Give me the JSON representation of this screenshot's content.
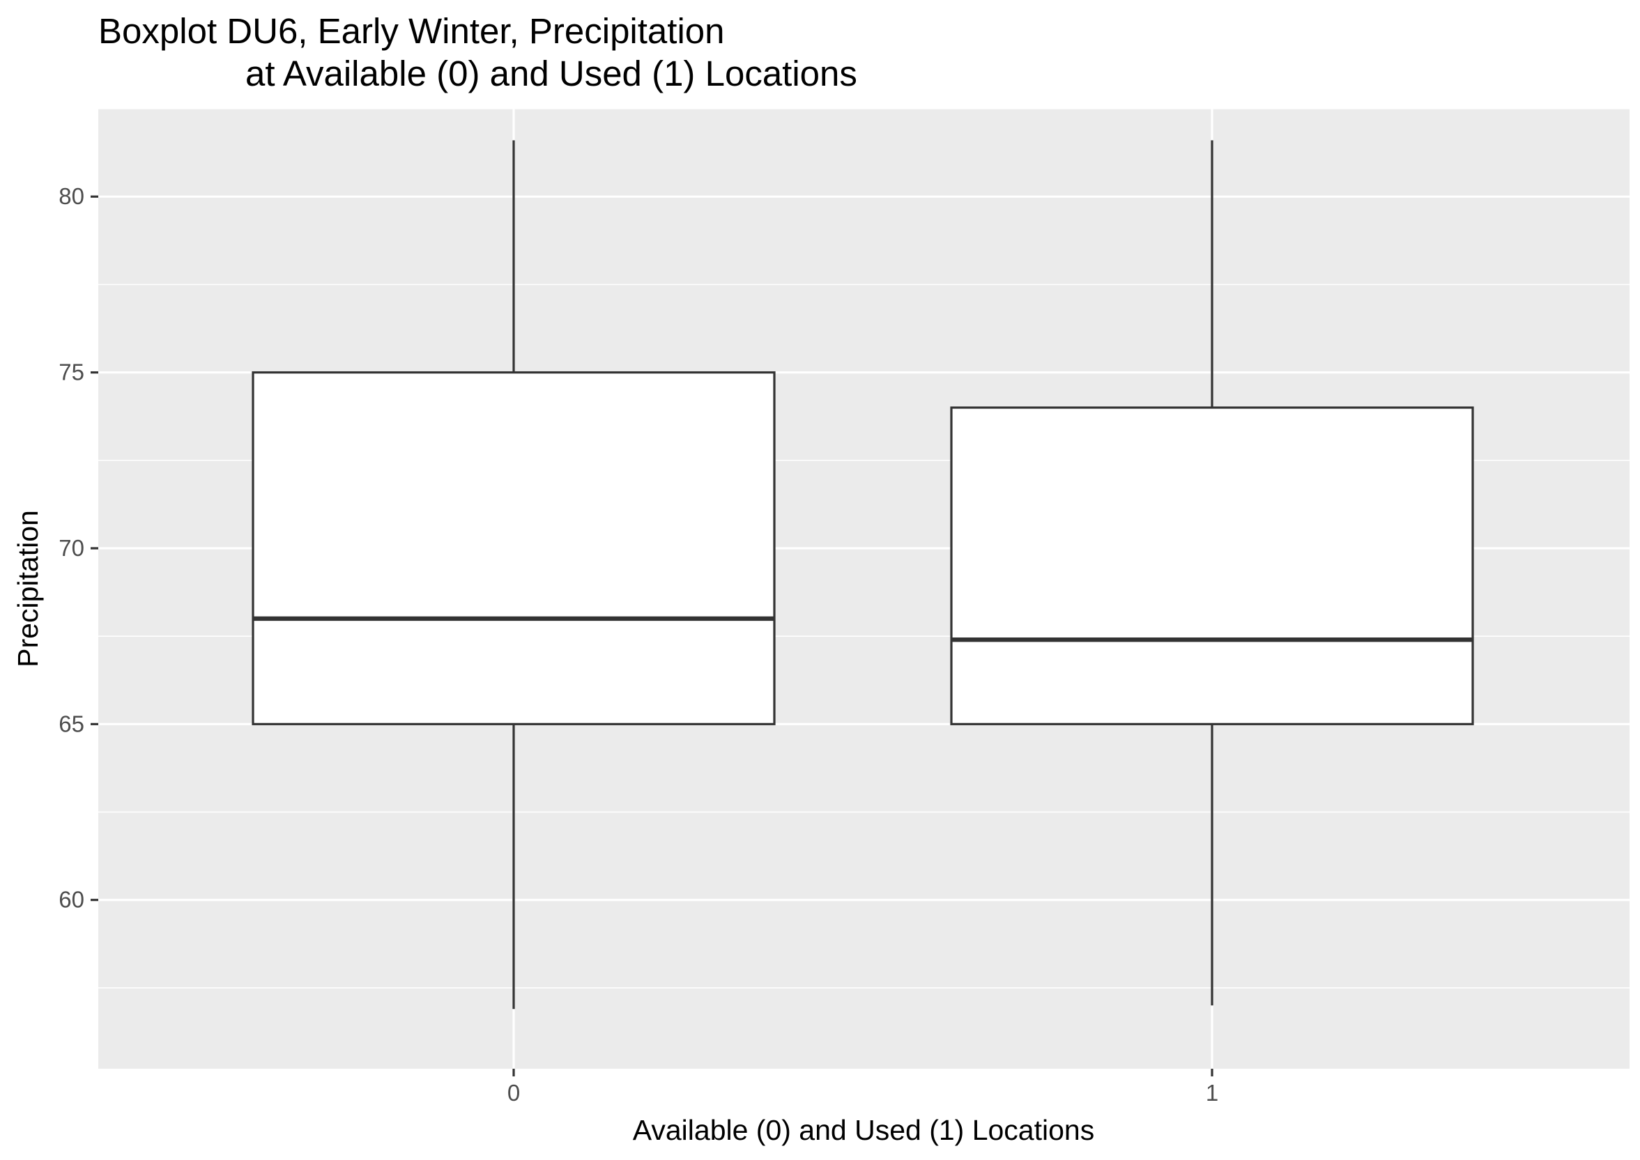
{
  "chart_data": {
    "type": "boxplot",
    "title_line1": "Boxplot DU6, Early Winter, Precipitation",
    "title_line2": "at Available (0) and Used (1) Locations",
    "xlabel": "Available (0) and Used (1) Locations",
    "ylabel": "Precipitation",
    "ylim": [
      55.2,
      82.5
    ],
    "yticks": [
      60,
      65,
      70,
      75,
      80
    ],
    "ytick_labels": [
      "60",
      "65",
      "70",
      "75",
      "80"
    ],
    "grid": true,
    "categories": [
      "0",
      "1"
    ],
    "boxes": [
      {
        "category": "0",
        "whisker_low": 56.9,
        "q1": 65.0,
        "median": 68.0,
        "q3": 75.0,
        "whisker_high": 81.6
      },
      {
        "category": "1",
        "whisker_low": 57.0,
        "q1": 65.0,
        "median": 67.4,
        "q3": 74.0,
        "whisker_high": 81.6
      }
    ],
    "colors": {
      "panel": "#ebebeb",
      "grid": "#ffffff",
      "box_fill": "#ffffff",
      "box_line": "#333333",
      "tick_text": "#4d4d4d"
    }
  }
}
